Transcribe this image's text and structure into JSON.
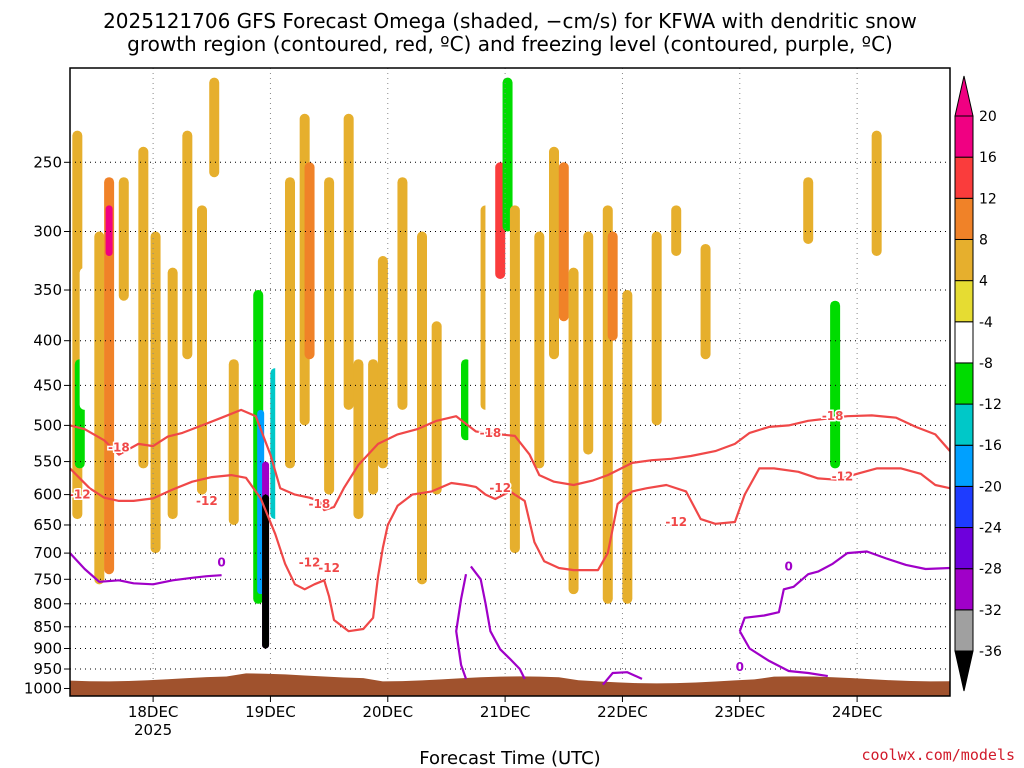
{
  "chart_data": {
    "type": "heatmap",
    "title_lines": [
      "2025121706 GFS Forecast Omega (shaded, −cm/s) for KFWA with dendritic snow",
      "growth region (contoured, red, ºC) and freezing level (contoured, purple, ºC)"
    ],
    "xlabel": "Forecast Time (UTC)",
    "ylabel": "",
    "x_axis": {
      "unit": "hours since 2025-12-17 00 UTC",
      "range": [
        7.0,
        187.0
      ],
      "ticks": [
        {
          "value": 24,
          "label": "18DEC",
          "sublabel": "2025"
        },
        {
          "value": 48,
          "label": "19DEC",
          "sublabel": ""
        },
        {
          "value": 72,
          "label": "20DEC",
          "sublabel": ""
        },
        {
          "value": 96,
          "label": "21DEC",
          "sublabel": ""
        },
        {
          "value": 120,
          "label": "22DEC",
          "sublabel": ""
        },
        {
          "value": 144,
          "label": "23DEC",
          "sublabel": ""
        },
        {
          "value": 168,
          "label": "24DEC",
          "sublabel": ""
        }
      ]
    },
    "y_axis": {
      "unit": "hPa",
      "scale": "log",
      "range": [
        195,
        1020
      ],
      "ticks": [
        250,
        300,
        350,
        400,
        450,
        500,
        550,
        600,
        650,
        700,
        750,
        800,
        850,
        900,
        950,
        1000
      ]
    },
    "colorbar": {
      "levels": [
        -36,
        -32,
        -28,
        -24,
        -20,
        -16,
        -12,
        -8,
        -4,
        4,
        8,
        12,
        16,
        20
      ],
      "colors": [
        "#000000",
        "#a0a0a0",
        "#a000c8",
        "#6e00dc",
        "#1e3cff",
        "#00a0ff",
        "#00c8c8",
        "#00dc00",
        "#ffffff",
        "#e6dc32",
        "#e6af2d",
        "#f08228",
        "#fa3c3c",
        "#f00082"
      ]
    },
    "ground": {
      "color": "#a0522d",
      "surface_pressure_hPa": 975
    },
    "omega_cells": [
      {
        "t": 8.5,
        "p0": 230,
        "p1": 640,
        "v": 6
      },
      {
        "t": 9.0,
        "p0": 420,
        "p1": 560,
        "v": -12
      },
      {
        "t": 10.0,
        "p0": 330,
        "p1": 480,
        "v": -6
      },
      {
        "t": 13.0,
        "p0": 300,
        "p1": 760,
        "v": 5
      },
      {
        "t": 15.0,
        "p0": 260,
        "p1": 740,
        "v": 8
      },
      {
        "t": 15.0,
        "p0": 280,
        "p1": 320,
        "v": 18
      },
      {
        "t": 18.0,
        "p0": 260,
        "p1": 360,
        "v": 6
      },
      {
        "t": 22.0,
        "p0": 240,
        "p1": 560,
        "v": 5
      },
      {
        "t": 24.5,
        "p0": 300,
        "p1": 700,
        "v": 5
      },
      {
        "t": 28.0,
        "p0": 330,
        "p1": 640,
        "v": 7
      },
      {
        "t": 31.0,
        "p0": 230,
        "p1": 420,
        "v": 5
      },
      {
        "t": 34.0,
        "p0": 280,
        "p1": 600,
        "v": 6
      },
      {
        "t": 36.5,
        "p0": 200,
        "p1": 260,
        "v": 5
      },
      {
        "t": 40.5,
        "p0": 420,
        "p1": 650,
        "v": 5
      },
      {
        "t": 44.0,
        "p0": 200,
        "p1": 940,
        "v": -6
      },
      {
        "t": 45.5,
        "p0": 350,
        "p1": 800,
        "v": -10
      },
      {
        "t": 46.0,
        "p0": 480,
        "p1": 780,
        "v": -18
      },
      {
        "t": 47.0,
        "p0": 550,
        "p1": 900,
        "v": -30
      },
      {
        "t": 47.0,
        "p0": 600,
        "p1": 900,
        "v": -38
      },
      {
        "t": 49.0,
        "p0": 430,
        "p1": 640,
        "v": -14
      },
      {
        "t": 50.0,
        "p0": 200,
        "p1": 960,
        "v": -6
      },
      {
        "t": 52.0,
        "p0": 260,
        "p1": 560,
        "v": 6
      },
      {
        "t": 55.0,
        "p0": 220,
        "p1": 500,
        "v": 5
      },
      {
        "t": 56.0,
        "p0": 250,
        "p1": 420,
        "v": 10
      },
      {
        "t": 60.0,
        "p0": 260,
        "p1": 600,
        "v": 6
      },
      {
        "t": 64.0,
        "p0": 220,
        "p1": 480,
        "v": 5
      },
      {
        "t": 66.0,
        "p0": 420,
        "p1": 640,
        "v": 6
      },
      {
        "t": 69.0,
        "p0": 420,
        "p1": 600,
        "v": 7
      },
      {
        "t": 71.0,
        "p0": 320,
        "p1": 560,
        "v": 5
      },
      {
        "t": 75.0,
        "p0": 260,
        "p1": 480,
        "v": 5
      },
      {
        "t": 79.0,
        "p0": 300,
        "p1": 760,
        "v": 5
      },
      {
        "t": 82.0,
        "p0": 380,
        "p1": 600,
        "v": 5
      },
      {
        "t": 87.0,
        "p0": 260,
        "p1": 700,
        "v": -6
      },
      {
        "t": 88.0,
        "p0": 420,
        "p1": 520,
        "v": -12
      },
      {
        "t": 89.5,
        "p0": 330,
        "p1": 700,
        "v": -8
      },
      {
        "t": 92.0,
        "p0": 280,
        "p1": 480,
        "v": 5
      },
      {
        "t": 93.0,
        "p0": 200,
        "p1": 560,
        "v": -8
      },
      {
        "t": 94.0,
        "p0": 400,
        "p1": 940,
        "v": -6
      },
      {
        "t": 95.0,
        "p0": 250,
        "p1": 340,
        "v": 14
      },
      {
        "t": 96.5,
        "p0": 200,
        "p1": 300,
        "v": -10
      },
      {
        "t": 98.0,
        "p0": 280,
        "p1": 700,
        "v": 5
      },
      {
        "t": 101.0,
        "p0": 200,
        "p1": 320,
        "v": -8
      },
      {
        "t": 103.0,
        "p0": 300,
        "p1": 560,
        "v": 6
      },
      {
        "t": 106.0,
        "p0": 240,
        "p1": 420,
        "v": 5
      },
      {
        "t": 108.0,
        "p0": 250,
        "p1": 380,
        "v": 10
      },
      {
        "t": 110.0,
        "p0": 330,
        "p1": 780,
        "v": 5
      },
      {
        "t": 113.0,
        "p0": 300,
        "p1": 540,
        "v": 5
      },
      {
        "t": 117.0,
        "p0": 280,
        "p1": 800,
        "v": 6
      },
      {
        "t": 118.0,
        "p0": 300,
        "p1": 400,
        "v": 11
      },
      {
        "t": 121.0,
        "p0": 350,
        "p1": 800,
        "v": 5
      },
      {
        "t": 127.0,
        "p0": 300,
        "p1": 500,
        "v": 5
      },
      {
        "t": 131.0,
        "p0": 280,
        "p1": 320,
        "v": 5
      },
      {
        "t": 134.0,
        "p0": 290,
        "p1": 330,
        "v": -8
      },
      {
        "t": 137.0,
        "p0": 310,
        "p1": 420,
        "v": 5
      },
      {
        "t": 144.0,
        "p0": 300,
        "p1": 420,
        "v": -6
      },
      {
        "t": 145.0,
        "p0": 500,
        "p1": 620,
        "v": -6
      },
      {
        "t": 153.5,
        "p0": 350,
        "p1": 460,
        "v": -6
      },
      {
        "t": 154.0,
        "p0": 680,
        "p1": 730,
        "v": -6
      },
      {
        "t": 158.0,
        "p0": 260,
        "p1": 310,
        "v": 5
      },
      {
        "t": 161.0,
        "p0": 350,
        "p1": 470,
        "v": -6
      },
      {
        "t": 163.5,
        "p0": 360,
        "p1": 560,
        "v": -12
      },
      {
        "t": 167.0,
        "p0": 220,
        "p1": 260,
        "v": -6
      },
      {
        "t": 170.0,
        "p0": 240,
        "p1": 330,
        "v": -8
      },
      {
        "t": 172.0,
        "p0": 230,
        "p1": 320,
        "v": 5
      },
      {
        "t": 176.0,
        "p0": 240,
        "p1": 330,
        "v": -6
      },
      {
        "t": 185.0,
        "p0": 380,
        "p1": 420,
        "v": -6
      },
      {
        "t": 186.0,
        "p0": 260,
        "p1": 300,
        "v": -6
      }
    ],
    "contours": [
      {
        "name": "dgz-18",
        "color": "#f04848",
        "points": [
          [
            7,
            500
          ],
          [
            10,
            505
          ],
          [
            14,
            520
          ],
          [
            17,
            540
          ],
          [
            21,
            525
          ],
          [
            24,
            528
          ],
          [
            27,
            515
          ],
          [
            30,
            510
          ],
          [
            34,
            500
          ],
          [
            38,
            490
          ],
          [
            42,
            480
          ],
          [
            45,
            488
          ],
          [
            48,
            540
          ],
          [
            50,
            590
          ],
          [
            53,
            600
          ],
          [
            56,
            605
          ],
          [
            58,
            610
          ],
          [
            59,
            625
          ],
          [
            61,
            620
          ],
          [
            63,
            590
          ],
          [
            66,
            555
          ],
          [
            70,
            525
          ],
          [
            74,
            512
          ],
          [
            78,
            505
          ],
          [
            82,
            494
          ],
          [
            86,
            488
          ],
          [
            88,
            498
          ],
          [
            90,
            508
          ],
          [
            92,
            510
          ],
          [
            95,
            512
          ],
          [
            98,
            514
          ],
          [
            101,
            540
          ],
          [
            103,
            570
          ],
          [
            106,
            580
          ],
          [
            110,
            585
          ],
          [
            114,
            578
          ],
          [
            117,
            570
          ],
          [
            122,
            552
          ],
          [
            126,
            548
          ],
          [
            130,
            546
          ],
          [
            134,
            542
          ],
          [
            139,
            535
          ],
          [
            143,
            525
          ],
          [
            146,
            510
          ],
          [
            150,
            502
          ],
          [
            154,
            500
          ],
          [
            158,
            494
          ],
          [
            162,
            491
          ],
          [
            166,
            488
          ],
          [
            171,
            487
          ],
          [
            176,
            490
          ],
          [
            180,
            502
          ],
          [
            184,
            512
          ],
          [
            187,
            535
          ]
        ]
      },
      {
        "name": "dgz-12",
        "color": "#f04848",
        "points": [
          [
            7,
            560
          ],
          [
            11,
            590
          ],
          [
            14,
            605
          ],
          [
            17,
            610
          ],
          [
            20,
            610
          ],
          [
            24,
            606
          ],
          [
            28,
            592
          ],
          [
            32,
            580
          ],
          [
            36,
            573
          ],
          [
            40,
            570
          ],
          [
            43,
            574
          ],
          [
            46,
            606
          ],
          [
            49,
            666
          ],
          [
            51,
            720
          ],
          [
            53,
            760
          ],
          [
            55,
            770
          ],
          [
            57,
            760
          ],
          [
            59,
            752
          ],
          [
            60,
            785
          ],
          [
            61,
            835
          ],
          [
            64,
            860
          ],
          [
            67,
            855
          ],
          [
            69,
            830
          ],
          [
            70,
            745
          ],
          [
            71,
            690
          ],
          [
            72,
            650
          ],
          [
            74,
            618
          ],
          [
            77,
            600
          ],
          [
            81,
            595
          ],
          [
            85,
            582
          ],
          [
            88,
            585
          ],
          [
            90,
            588
          ],
          [
            92,
            600
          ],
          [
            94,
            607
          ],
          [
            97,
            595
          ],
          [
            100,
            610
          ],
          [
            102,
            680
          ],
          [
            104,
            715
          ],
          [
            107,
            728
          ],
          [
            110,
            732
          ],
          [
            113,
            732
          ],
          [
            115,
            732
          ],
          [
            117,
            700
          ],
          [
            119,
            615
          ],
          [
            122,
            595
          ],
          [
            125,
            590
          ],
          [
            129,
            585
          ],
          [
            133,
            595
          ],
          [
            136,
            640
          ],
          [
            139,
            648
          ],
          [
            143,
            645
          ],
          [
            145,
            600
          ],
          [
            148,
            560
          ],
          [
            151,
            560
          ],
          [
            156,
            565
          ],
          [
            160,
            575
          ],
          [
            164,
            577
          ],
          [
            168,
            568
          ],
          [
            172,
            560
          ],
          [
            177,
            560
          ],
          [
            181,
            568
          ],
          [
            184,
            585
          ],
          [
            187,
            590
          ]
        ]
      },
      {
        "name": "fzl-0-a",
        "color": "#a000c8",
        "points": [
          [
            7,
            700
          ],
          [
            10,
            730
          ],
          [
            13,
            755
          ],
          [
            17,
            752
          ],
          [
            20,
            758
          ],
          [
            24,
            760
          ],
          [
            28,
            752
          ],
          [
            32,
            747
          ],
          [
            35,
            744
          ],
          [
            38,
            742
          ]
        ]
      },
      {
        "name": "fzl-0-b",
        "color": "#a000c8",
        "points": [
          [
            88,
            740
          ],
          [
            87,
            790
          ],
          [
            86,
            860
          ],
          [
            87,
            940
          ],
          [
            88,
            975
          ]
        ]
      },
      {
        "name": "fzl-0-c",
        "color": "#a000c8",
        "points": [
          [
            89,
            725
          ],
          [
            91,
            750
          ],
          [
            92,
            800
          ],
          [
            93,
            860
          ],
          [
            95,
            902
          ],
          [
            97,
            925
          ],
          [
            99,
            950
          ],
          [
            100,
            975
          ]
        ]
      },
      {
        "name": "fzl-0-d",
        "color": "#a000c8",
        "points": [
          [
            116,
            990
          ],
          [
            118,
            960
          ],
          [
            121,
            958
          ],
          [
            124,
            975
          ]
        ]
      },
      {
        "name": "fzl-0-e",
        "color": "#a000c8",
        "points": [
          [
            144,
            860
          ],
          [
            145,
            830
          ],
          [
            149,
            825
          ],
          [
            152,
            818
          ],
          [
            153,
            770
          ],
          [
            155,
            765
          ],
          [
            158,
            740
          ],
          [
            160,
            735
          ],
          [
            163,
            720
          ],
          [
            166,
            700
          ],
          [
            170,
            697
          ],
          [
            174,
            710
          ],
          [
            178,
            722
          ],
          [
            182,
            730
          ],
          [
            187,
            728
          ]
        ]
      },
      {
        "name": "fzl-0-f",
        "color": "#a000c8",
        "points": [
          [
            144,
            860
          ],
          [
            146,
            900
          ],
          [
            150,
            930
          ],
          [
            154,
            955
          ],
          [
            158,
            960
          ],
          [
            162,
            968
          ]
        ]
      }
    ],
    "contour_labels": [
      {
        "text": "-18",
        "t": 17,
        "p": 530,
        "color": "#f04848"
      },
      {
        "text": "-12",
        "t": 9,
        "p": 600,
        "color": "#f04848"
      },
      {
        "text": "-12",
        "t": 35,
        "p": 610,
        "color": "#f04848"
      },
      {
        "text": "-18",
        "t": 58,
        "p": 615,
        "color": "#f04848"
      },
      {
        "text": "-12",
        "t": 56,
        "p": 718,
        "color": "#f04848"
      },
      {
        "text": "-12",
        "t": 60,
        "p": 728,
        "color": "#f04848"
      },
      {
        "text": "-18",
        "t": 93,
        "p": 510,
        "color": "#f04848"
      },
      {
        "text": "-12",
        "t": 95,
        "p": 590,
        "color": "#f04848"
      },
      {
        "text": "-12",
        "t": 131,
        "p": 645,
        "color": "#f04848"
      },
      {
        "text": "-18",
        "t": 163,
        "p": 488,
        "color": "#f04848"
      },
      {
        "text": "-12",
        "t": 165,
        "p": 572,
        "color": "#f04848"
      },
      {
        "text": "0",
        "t": 38,
        "p": 718,
        "color": "#a000c8"
      },
      {
        "text": "0",
        "t": 154,
        "p": 725,
        "color": "#a000c8"
      },
      {
        "text": "0",
        "t": 144,
        "p": 945,
        "color": "#a000c8"
      }
    ]
  },
  "credit": "coolwx.com/models"
}
